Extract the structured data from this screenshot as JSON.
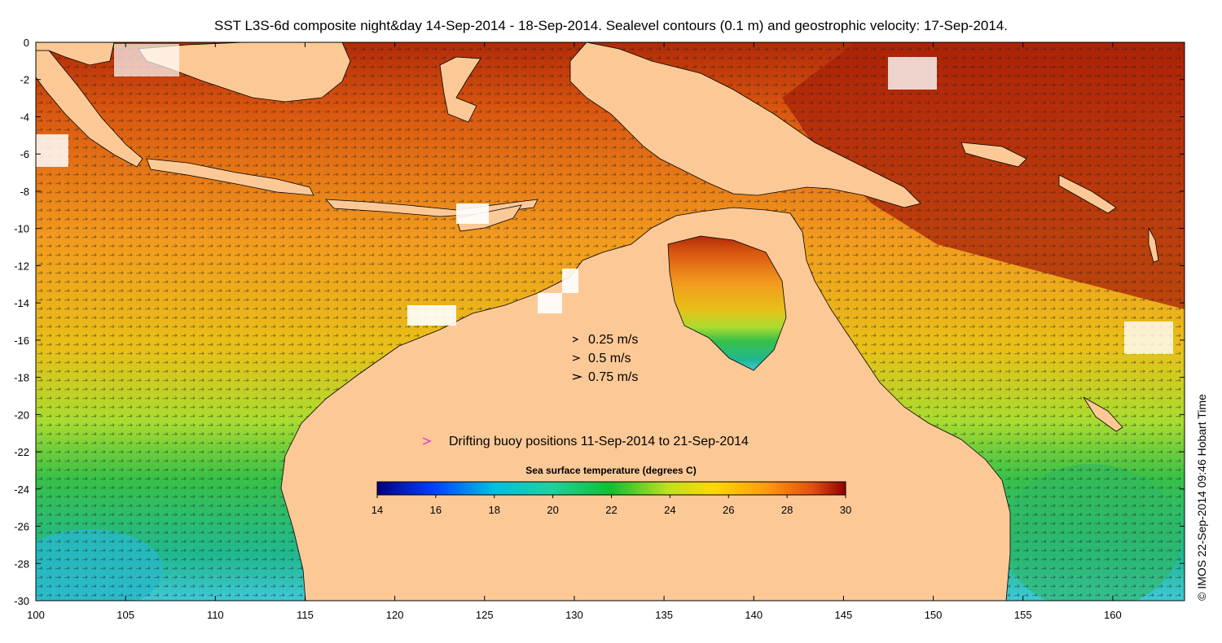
{
  "title": "SST L3S-6d composite night&day 14-Sep-2014 - 18-Sep-2014. Sealevel contours (0.1 m) and geostrophic velocity: 17-Sep-2014.",
  "credit": "© IMOS 22-Sep-2014 09:46 Hobart Time",
  "axes": {
    "x_ticks": [
      100,
      105,
      110,
      115,
      120,
      125,
      130,
      135,
      140,
      145,
      150,
      155,
      160
    ],
    "y_ticks": [
      0,
      -2,
      -4,
      -6,
      -8,
      -10,
      -12,
      -14,
      -16,
      -18,
      -20,
      -22,
      -24,
      -26,
      -28,
      -30
    ],
    "lon_range": [
      100,
      164
    ],
    "lat_range": [
      -30,
      0
    ]
  },
  "velocity_legend": [
    {
      "label": "0.25 m/s",
      "speed": 0.25
    },
    {
      "label": "0.5 m/s",
      "speed": 0.5
    },
    {
      "label": "0.75 m/s",
      "speed": 0.75
    }
  ],
  "buoy_legend": {
    "label": "Drifting buoy positions 11-Sep-2014 to 21-Sep-2014",
    "color": "#e040c0"
  },
  "colorbar": {
    "title": "Sea surface temperature (degrees C)",
    "ticks": [
      14,
      16,
      18,
      20,
      22,
      24,
      26,
      28,
      30
    ],
    "range": [
      14,
      30
    ],
    "colors": [
      "#00007f",
      "#0040ff",
      "#00c0e0",
      "#20d0a0",
      "#10c030",
      "#c0e020",
      "#ffd800",
      "#ff9a10",
      "#e05010",
      "#900000"
    ]
  },
  "colors": {
    "land": "#fcc996",
    "ocean_warm": "#d85a10",
    "ocean_mid": "#f5a020",
    "ocean_cool": "#30c040",
    "missing": "#ffffff"
  }
}
